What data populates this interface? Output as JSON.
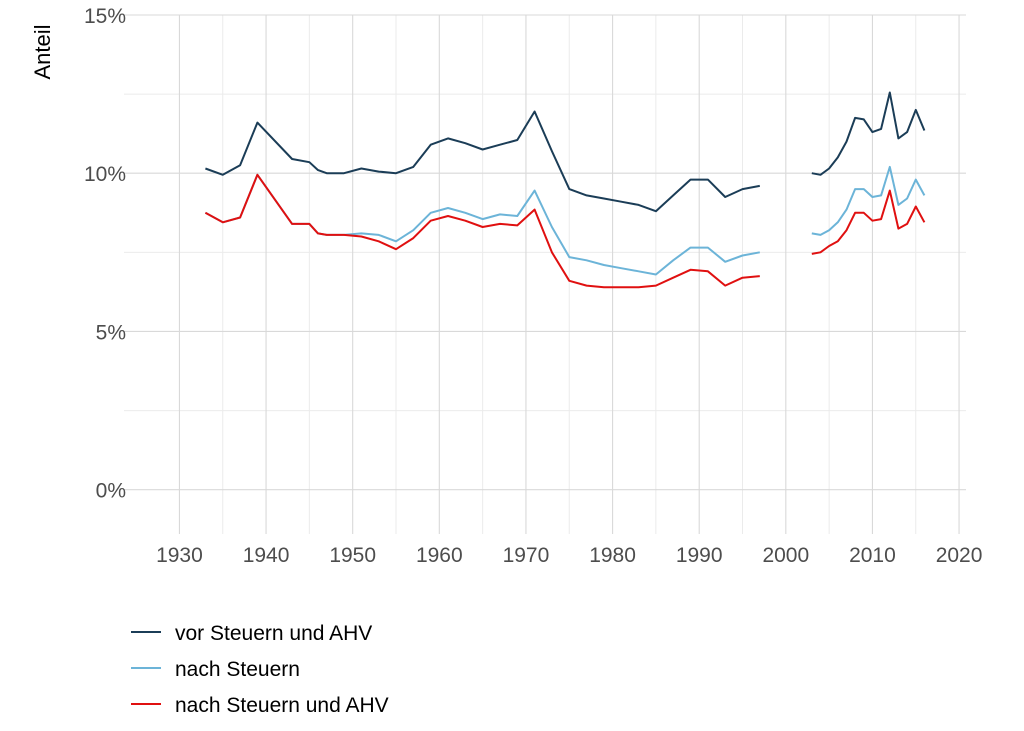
{
  "chart_data": {
    "type": "line",
    "ylabel": "Anteil",
    "xlabel": "",
    "title": "",
    "xlim": [
      1923.6,
      2020.8
    ],
    "ylim": [
      -1.4,
      15.0
    ],
    "x_ticks": [
      1930,
      1940,
      1950,
      1960,
      1970,
      1980,
      1990,
      2000,
      2010,
      2020
    ],
    "x_tick_labels": [
      "1930",
      "1940",
      "1950",
      "1960",
      "1970",
      "1980",
      "1990",
      "2000",
      "2010",
      "2020"
    ],
    "y_ticks": [
      0,
      5,
      10,
      15
    ],
    "y_tick_labels": [
      "0%",
      "5%",
      "10%",
      "15%"
    ],
    "y_minor_ticks": [
      2.5,
      7.5,
      12.5
    ],
    "x_minor_ticks": [
      1935,
      1945,
      1955,
      1965,
      1975,
      1985,
      1995,
      2005,
      2015
    ],
    "grid": true,
    "legend_position": "bottom",
    "series": [
      {
        "name": "vor Steuern und AHV",
        "color": "#1b3d57",
        "segments": [
          {
            "x": [
              1933,
              1935,
              1937,
              1939,
              1943,
              1945,
              1946,
              1947,
              1949,
              1951,
              1953,
              1955,
              1957,
              1959,
              1961,
              1963,
              1965,
              1967,
              1969,
              1971,
              1973,
              1975,
              1977,
              1979,
              1981,
              1983,
              1985,
              1987,
              1989,
              1991,
              1993,
              1995,
              1997
            ],
            "y": [
              10.15,
              9.95,
              10.25,
              11.6,
              10.45,
              10.35,
              10.1,
              10.0,
              10.0,
              10.15,
              10.05,
              10.0,
              10.2,
              10.9,
              11.1,
              10.95,
              10.75,
              10.9,
              11.05,
              11.95,
              10.7,
              9.5,
              9.3,
              9.2,
              9.1,
              9.0,
              8.8,
              9.3,
              9.8,
              9.8,
              9.25,
              9.5,
              9.6
            ]
          },
          {
            "x": [
              2003,
              2004,
              2005,
              2006,
              2007,
              2008,
              2009,
              2010,
              2011,
              2012,
              2013,
              2014,
              2015,
              2016
            ],
            "y": [
              10.0,
              9.95,
              10.15,
              10.5,
              11.0,
              11.75,
              11.7,
              11.3,
              11.4,
              12.55,
              11.1,
              11.3,
              12.0,
              11.35
            ]
          }
        ]
      },
      {
        "name": "nach Steuern",
        "color": "#6cb4d8",
        "segments": [
          {
            "x": [
              1933,
              1935,
              1937,
              1939,
              1943,
              1945,
              1946,
              1947,
              1949,
              1951,
              1953,
              1955,
              1957,
              1959,
              1961,
              1963,
              1965,
              1967,
              1969,
              1971,
              1973,
              1975,
              1977,
              1979,
              1981,
              1983,
              1985,
              1987,
              1989,
              1991,
              1993,
              1995,
              1997
            ],
            "y": [
              8.75,
              8.45,
              8.6,
              9.95,
              8.4,
              8.4,
              8.1,
              8.05,
              8.05,
              8.1,
              8.05,
              7.85,
              8.2,
              8.75,
              8.9,
              8.75,
              8.55,
              8.7,
              8.65,
              9.45,
              8.3,
              7.35,
              7.25,
              7.1,
              7.0,
              6.9,
              6.8,
              7.25,
              7.65,
              7.65,
              7.2,
              7.4,
              7.5
            ]
          },
          {
            "x": [
              2003,
              2004,
              2005,
              2006,
              2007,
              2008,
              2009,
              2010,
              2011,
              2012,
              2013,
              2014,
              2015,
              2016
            ],
            "y": [
              8.1,
              8.05,
              8.2,
              8.45,
              8.85,
              9.5,
              9.5,
              9.25,
              9.3,
              10.2,
              9.0,
              9.2,
              9.8,
              9.3
            ]
          }
        ]
      },
      {
        "name": "nach Steuern und AHV",
        "color": "#e01010",
        "segments": [
          {
            "x": [
              1933,
              1935,
              1937,
              1939,
              1943,
              1945,
              1946,
              1947,
              1949,
              1951,
              1953,
              1955,
              1957,
              1959,
              1961,
              1963,
              1965,
              1967,
              1969,
              1971,
              1973,
              1975,
              1977,
              1979,
              1981,
              1983,
              1985,
              1987,
              1989,
              1991,
              1993,
              1995,
              1997
            ],
            "y": [
              8.75,
              8.45,
              8.6,
              9.95,
              8.4,
              8.4,
              8.1,
              8.05,
              8.05,
              8.0,
              7.85,
              7.6,
              7.95,
              8.5,
              8.65,
              8.5,
              8.3,
              8.4,
              8.35,
              8.85,
              7.5,
              6.6,
              6.45,
              6.4,
              6.4,
              6.4,
              6.45,
              6.7,
              6.95,
              6.9,
              6.45,
              6.7,
              6.75
            ]
          },
          {
            "x": [
              2003,
              2004,
              2005,
              2006,
              2007,
              2008,
              2009,
              2010,
              2011,
              2012,
              2013,
              2014,
              2015,
              2016
            ],
            "y": [
              7.45,
              7.5,
              7.7,
              7.85,
              8.2,
              8.75,
              8.75,
              8.5,
              8.55,
              9.45,
              8.25,
              8.4,
              8.95,
              8.45
            ]
          }
        ]
      }
    ]
  }
}
